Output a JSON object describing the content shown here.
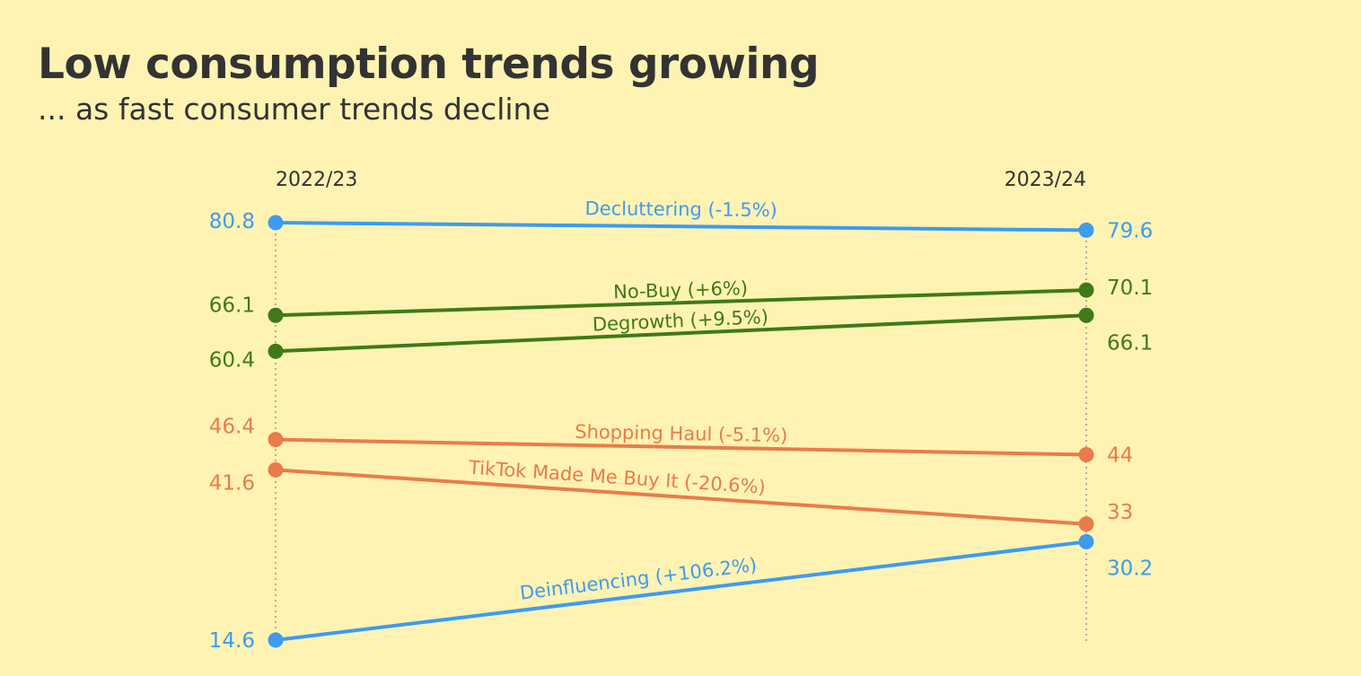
{
  "chart_data": {
    "type": "line",
    "title": "Low consumption trends growing",
    "subtitle": "... as fast consumer trends decline",
    "x": [
      "2022/23",
      "2023/24"
    ],
    "series": [
      {
        "name": "Decluttering (-1.5%)",
        "values": [
          80.8,
          79.6
        ],
        "color": "#3D9BF0",
        "start_label": "80.8",
        "end_label": "79.6"
      },
      {
        "name": "No-Buy (+6%)",
        "values": [
          66.1,
          70.1
        ],
        "color": "#3F7A17",
        "start_label": "66.1",
        "end_label": "70.1"
      },
      {
        "name": "Degrowth (+9.5%)",
        "values": [
          60.4,
          66.1
        ],
        "color": "#3F7A17",
        "start_label": "60.4",
        "end_label": "66.1"
      },
      {
        "name": "Shopping Haul (-5.1%)",
        "values": [
          46.4,
          44
        ],
        "color": "#EA7B4A",
        "start_label": "46.4",
        "end_label": "44"
      },
      {
        "name": "TikTok Made Me Buy It (-20.6%)",
        "values": [
          41.6,
          33
        ],
        "color": "#EA7B4A",
        "start_label": "41.6",
        "end_label": "33"
      },
      {
        "name": "Deinfluencing (+106.2%)",
        "values": [
          14.6,
          30.2
        ],
        "color": "#3D9BF0",
        "start_label": "14.6",
        "end_label": "30.2"
      }
    ],
    "legend": "none",
    "grid": false
  }
}
